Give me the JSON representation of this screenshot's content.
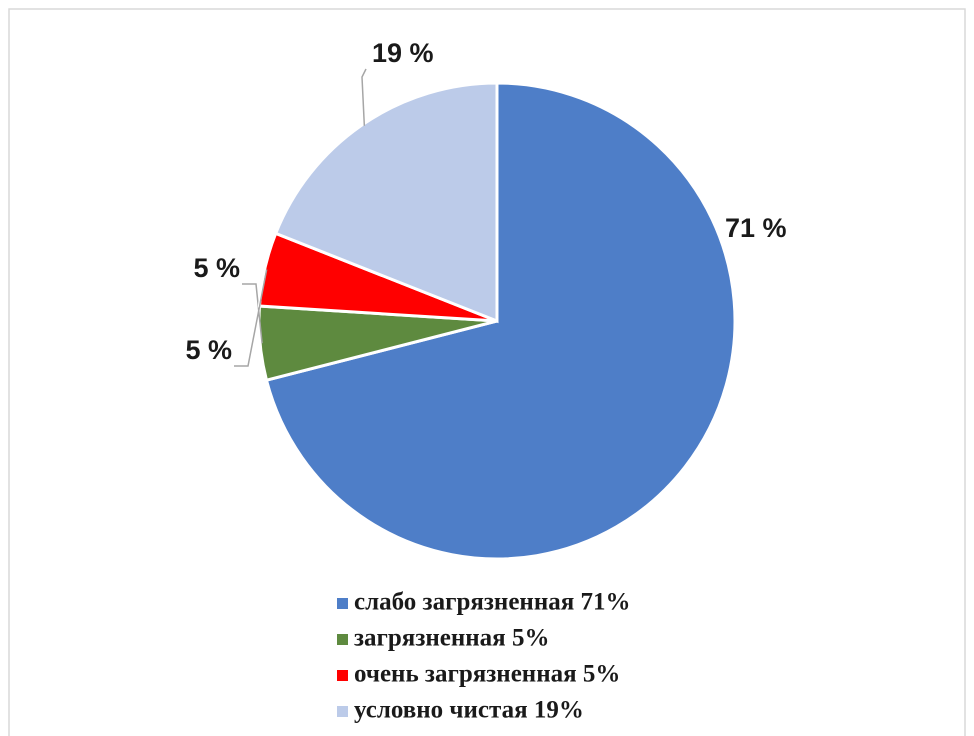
{
  "chart_data": {
    "type": "pie",
    "categories": [
      "слабо загрязненная 71%",
      "загрязненная 5%",
      "очень загрязненная 5%",
      "условно чистая 19%"
    ],
    "values": [
      71,
      5,
      5,
      19
    ],
    "value_labels": [
      "71 %",
      "5 %",
      "5 %",
      "19 %"
    ],
    "colors": [
      "#4e7ec8",
      "#5e8a3f",
      "#ff0000",
      "#bccbe9"
    ],
    "legend": "bottom"
  }
}
